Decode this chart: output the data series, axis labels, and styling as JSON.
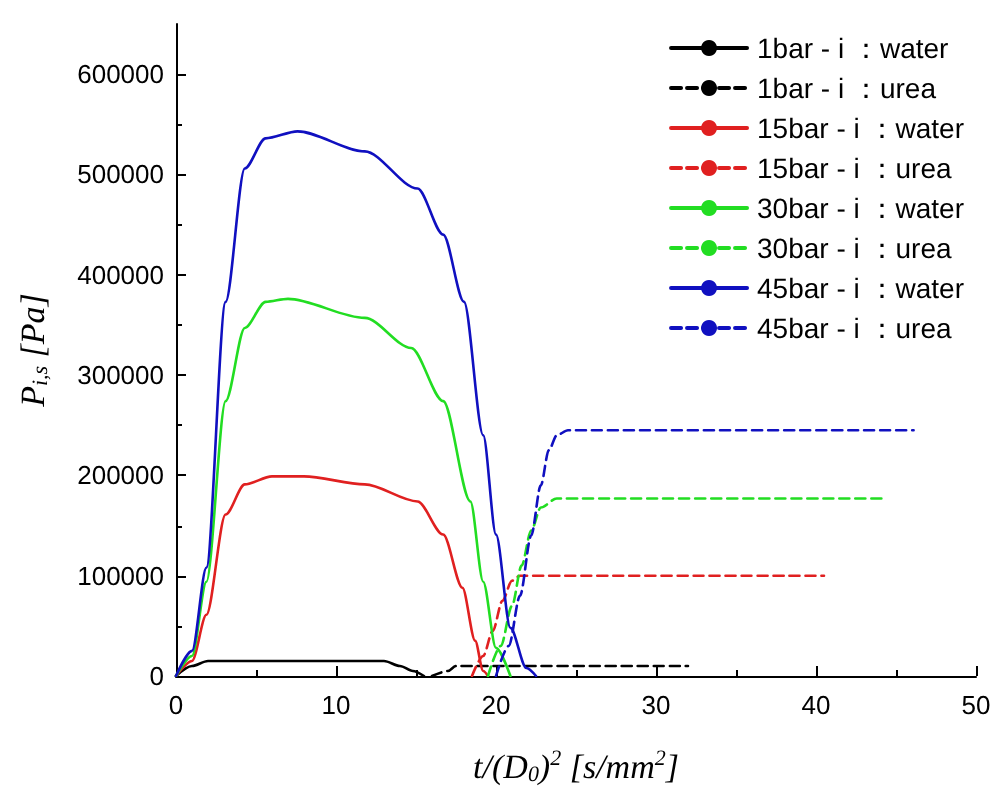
{
  "chart_data": {
    "type": "line",
    "xlabel": "t/(D$_{0}$)$^{2}$ [s/mm$^{2}$]",
    "ylabel": "P$_{i,s}$ [Pa]",
    "xlim": [
      0,
      50
    ],
    "xticks": [
      0,
      10,
      20,
      30,
      40,
      50
    ],
    "ylim": [
      0,
      650000
    ],
    "yticks": [
      0,
      100000,
      200000,
      300000,
      400000,
      500000,
      600000
    ],
    "grid": false,
    "legend": "top right",
    "marker": "none",
    "series": [
      {
        "name": "1bar - i ：water",
        "color": "#000000",
        "line_style": "solid",
        "x": [
          0,
          1,
          2,
          3,
          5,
          8,
          11,
          13,
          14,
          14.8,
          15.5
        ],
        "values": [
          0,
          10000,
          15000,
          15000,
          15000,
          15000,
          15000,
          15000,
          10000,
          5000,
          0
        ]
      },
      {
        "name": "1bar - i ：urea",
        "color": "#000000",
        "line_style": "dashed",
        "x": [
          16,
          17,
          17.5,
          18.5,
          32
        ],
        "values": [
          0,
          5000,
          10000,
          10000,
          10000
        ]
      },
      {
        "name": "15bar - i ：water",
        "color": "#e02020",
        "line_style": "solid",
        "x": [
          0,
          1,
          1.9,
          3.1,
          4.3,
          6,
          8,
          11.8,
          15.1,
          16.7,
          17.9,
          18.7,
          19.2,
          19.5
        ],
        "values": [
          0,
          15000,
          61000,
          161000,
          191000,
          199000,
          199000,
          191000,
          174000,
          141000,
          88000,
          35000,
          5000,
          0
        ]
      },
      {
        "name": "15bar - i ：urea",
        "color": "#e02020",
        "line_style": "dashed",
        "x": [
          18.5,
          19.2,
          19.8,
          20.4,
          21,
          21.5,
          40.5
        ],
        "values": [
          0,
          20000,
          45000,
          75000,
          95000,
          100000,
          100000
        ]
      },
      {
        "name": "30bar - i ：water",
        "color": "#22dd22",
        "line_style": "solid",
        "x": [
          0,
          1,
          1.9,
          3.1,
          4.3,
          5.6,
          7,
          11.8,
          14.7,
          16.7,
          18.4,
          19.2,
          20,
          20.9
        ],
        "values": [
          0,
          20000,
          94000,
          274000,
          347000,
          373000,
          376000,
          357000,
          327000,
          274000,
          174000,
          94000,
          28000,
          0
        ]
      },
      {
        "name": "30bar - i ：urea",
        "color": "#22dd22",
        "line_style": "dashed",
        "x": [
          19.5,
          20.3,
          21,
          21.6,
          22.2,
          22.8,
          23.8,
          44.2
        ],
        "values": [
          0,
          30000,
          70000,
          110000,
          145000,
          168000,
          177000,
          177000
        ]
      },
      {
        "name": "45bar - i ：water",
        "color": "#1010c0",
        "line_style": "solid",
        "x": [
          0,
          1,
          1.9,
          3.1,
          4.3,
          5.6,
          7.6,
          11.8,
          15.1,
          16.7,
          18,
          19.2,
          20,
          20.9,
          21.9,
          22.5
        ],
        "values": [
          0,
          25000,
          108000,
          373000,
          506000,
          536000,
          543000,
          523000,
          486000,
          440000,
          373000,
          240000,
          141000,
          48000,
          8000,
          0
        ]
      },
      {
        "name": "45bar - i ：urea",
        "color": "#1010c0",
        "line_style": "dashed",
        "x": [
          20,
          20.8,
          21.5,
          22.2,
          22.8,
          23.3,
          23.8,
          24.5,
          46.1
        ],
        "values": [
          0,
          30000,
          80000,
          140000,
          190000,
          225000,
          240000,
          245000,
          245000
        ]
      }
    ]
  }
}
